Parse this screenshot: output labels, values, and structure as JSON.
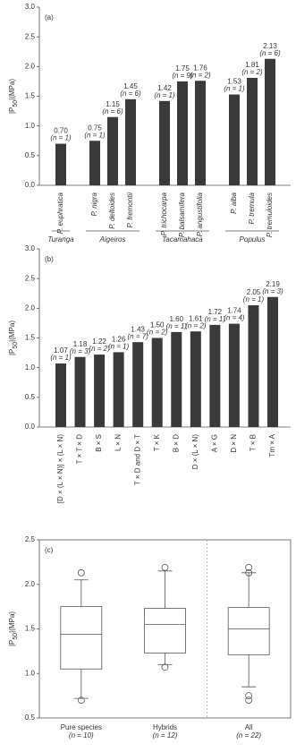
{
  "chart_data": [
    {
      "type": "bar",
      "panel_label": "(a)",
      "ylabel_prefix": "|P",
      "ylabel_sub": "50",
      "ylabel_suffix": "|(MPa)",
      "color": "#3a3a3a",
      "ylim": [
        0,
        3
      ],
      "yticks": [
        {
          "value": 0,
          "label": "0.0"
        },
        0.5,
        {
          "value": 1,
          "label": "1.0"
        },
        1.5,
        {
          "value": 2,
          "label": "2.0"
        },
        2.5,
        {
          "value": 3,
          "label": "3.0"
        }
      ],
      "groups": [
        {
          "name": "Turanga",
          "categories": [
            "P. euphratica"
          ],
          "values": [
            0.7
          ],
          "value_labels": [
            "0.70"
          ],
          "n_labels": [
            "(n = 1)"
          ]
        },
        {
          "name": "Aigeiros",
          "categories": [
            "P. nigra",
            "P. deltoides",
            "P. fremontii"
          ],
          "values": [
            0.75,
            1.15,
            1.45
          ],
          "value_labels": [
            "0.75",
            "1.15",
            "1.45"
          ],
          "n_labels": [
            "(n = 1)",
            "(n = 6)",
            "(n = 6)"
          ]
        },
        {
          "name": "Tacamahaca",
          "categories": [
            "P. trichocarpa",
            "P. balsamifera",
            "P. angustifolia"
          ],
          "values": [
            1.42,
            1.75,
            1.76
          ],
          "value_labels": [
            "1.42",
            "1.75",
            "1.76"
          ],
          "n_labels": [
            "(n = 1)",
            "(n = 9)",
            "(n = 2)"
          ]
        },
        {
          "name": "Populus",
          "categories": [
            "P. alba",
            "P. tremula",
            "P. tremuloides"
          ],
          "values": [
            1.53,
            1.81,
            2.13
          ],
          "value_labels": [
            "1.53",
            "1.81",
            "2.13"
          ],
          "n_labels": [
            "(n = 1)",
            "(n = 2)",
            "(n = 6)"
          ]
        }
      ]
    },
    {
      "type": "bar",
      "panel_label": "(b)",
      "ylabel_prefix": "|P",
      "ylabel_sub": "50",
      "ylabel_suffix": "|(MPa)",
      "color": "#3a3a3a",
      "ylim": [
        0,
        3
      ],
      "yticks": [
        {
          "value": 0,
          "label": "0.0"
        },
        0.5,
        {
          "value": 1,
          "label": "1.0"
        },
        1.5,
        {
          "value": 2,
          "label": "2.0"
        },
        2.5,
        {
          "value": 3,
          "label": "3.0"
        }
      ],
      "categories": [
        "[D × (L × N)] × (L × N)",
        "T × T × D",
        "B × S",
        "L × N",
        "T × D and D × T",
        "T × K",
        "B × D",
        "D × (L × N)",
        "A × G",
        "D × N",
        "T × B",
        "Tm × A"
      ],
      "values": [
        1.07,
        1.18,
        1.22,
        1.26,
        1.43,
        1.5,
        1.6,
        1.61,
        1.72,
        1.74,
        2.05,
        2.19
      ],
      "value_labels": [
        "1.07",
        "1.18",
        "1.22",
        "1.26",
        "1.43",
        "1.50",
        "1.60",
        "1.61",
        "1.72",
        "1.74",
        "2.05",
        "2.19"
      ],
      "n_labels": [
        "(n = 1)",
        "(n = 3)",
        "(n = 2)",
        "(n = 1)",
        "(n = 7)",
        "(n = 2)",
        "(n = 1)",
        "(n = 2)",
        "(n = 1)",
        "(n = 4)",
        "(n = 1)",
        "(n = 3)"
      ]
    },
    {
      "type": "box",
      "panel_label": "(c)",
      "ylabel_prefix": "|P",
      "ylabel_sub": "50",
      "ylabel_suffix": "|(MPa)",
      "ylim": [
        0.5,
        2.5
      ],
      "yticks": [
        0.5,
        {
          "value": 1,
          "label": "1.0"
        },
        1.5,
        {
          "value": 2,
          "label": "2.0"
        },
        2.5
      ],
      "categories": [
        "Pure species",
        "Hybrids",
        "All"
      ],
      "n_labels": [
        "(n = 10)",
        "(n = 12)",
        "(n = 22)"
      ],
      "whisker_low": [
        0.72,
        1.1,
        0.85
      ],
      "q1": [
        1.05,
        1.23,
        1.21
      ],
      "median": [
        1.44,
        1.55,
        1.5
      ],
      "q3": [
        1.75,
        1.73,
        1.74
      ],
      "whisker_high": [
        2.05,
        2.15,
        2.13
      ],
      "outliers": [
        [
          2.13,
          0.7
        ],
        [
          2.19,
          1.07
        ],
        [
          2.19,
          2.13,
          0.75,
          0.7
        ]
      ]
    }
  ]
}
